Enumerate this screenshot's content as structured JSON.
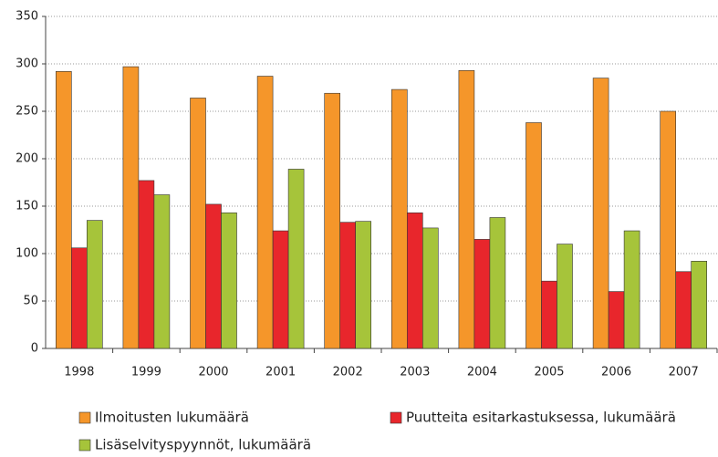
{
  "chart_data": {
    "type": "bar",
    "categories": [
      "1998",
      "1999",
      "2000",
      "2001",
      "2002",
      "2003",
      "2004",
      "2005",
      "2006",
      "2007"
    ],
    "series": [
      {
        "name": "Ilmoitusten lukumäärä",
        "color": "#f5962a",
        "values": [
          292,
          297,
          264,
          287,
          269,
          273,
          293,
          238,
          285,
          250
        ]
      },
      {
        "name": "Puutteita esitarkastuksessa, lukumäärä",
        "color": "#e8262c",
        "values": [
          106,
          177,
          152,
          124,
          133,
          143,
          115,
          71,
          60,
          81
        ]
      },
      {
        "name": "Lisäselvityspyynnöt, lukumäärä",
        "color": "#a6c43a",
        "values": [
          135,
          162,
          143,
          189,
          134,
          127,
          138,
          110,
          124,
          92
        ]
      }
    ],
    "ylim": [
      0,
      350
    ],
    "yticks": [
      0,
      50,
      100,
      150,
      200,
      250,
      300,
      350
    ],
    "grid": true
  }
}
